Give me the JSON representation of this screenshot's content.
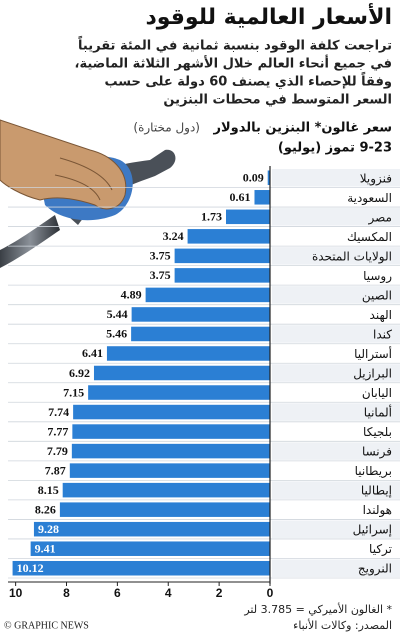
{
  "chart_data": {
    "type": "bar",
    "orientation": "horizontal",
    "title": "الأسعار العالمية للوقود",
    "subtitle": [
      "تراجعت كلفة الوقود بنسبة ثمانية في المئة تقريباً",
      "في جميع أنحاء العالم خلال الأشهر الثلاثة الماضية،",
      "وفقاً للإحصاء الذي يصنف 60 دولة على حسب",
      "السعر المتوسط في محطات البنزين"
    ],
    "axis_title": "سعر غالون* البنزين بالدولار",
    "axis_note": "(دول مختارة)",
    "date": "9-23 تموز (يوليو)",
    "categories": [
      "فنزويلا",
      "السعودية",
      "مصر",
      "المكسيك",
      "الولايات المتحدة",
      "روسيا",
      "الصين",
      "الهند",
      "كندا",
      "أستراليا",
      "البرازيل",
      "اليابان",
      "ألمانيا",
      "بلجيكا",
      "فرنسا",
      "بريطانيا",
      "إيطاليا",
      "هولندا",
      "إسرائيل",
      "تركيا",
      "النرويج"
    ],
    "values": [
      0.09,
      0.61,
      1.73,
      3.24,
      3.75,
      3.75,
      4.89,
      5.44,
      5.46,
      6.41,
      6.92,
      7.15,
      7.74,
      7.77,
      7.79,
      7.87,
      8.15,
      8.26,
      9.28,
      9.41,
      10.12
    ],
    "color": "#2b7fd4",
    "xlim": [
      0,
      10.3
    ],
    "xticks": [
      10,
      8,
      6,
      4,
      2,
      0
    ],
    "footnote": "* الغالون الأميركي = 3.785 لتر",
    "source": "المصدر: وكالات الأنباء",
    "credit": "© GRAPHIC NEWS"
  }
}
